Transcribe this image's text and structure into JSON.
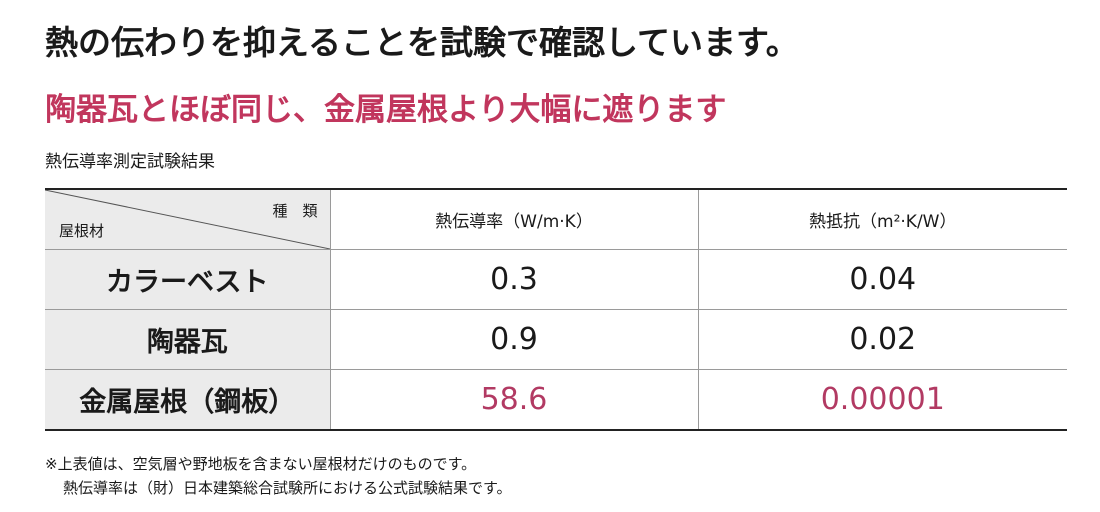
{
  "header": {
    "title": "熱の伝わりを抑えることを試験で確認しています。",
    "subtitle": "陶器瓦とほぼ同じ、金属屋根より大幅に遮ります"
  },
  "caption": "熱伝導率測定試験結果",
  "table": {
    "corner": {
      "top": "種　類",
      "bottom": "屋根材"
    },
    "columns": [
      "熱伝導率（W/m·K）",
      "熱抵抗（m²·K/W）"
    ],
    "rows": [
      [
        "カラーベスト",
        "0.3",
        "0.04"
      ],
      [
        "陶器瓦",
        "0.9",
        "0.02"
      ],
      [
        "金属屋根（鋼板）",
        "58.6",
        "0.00001"
      ]
    ]
  },
  "notes": [
    "※上表値は、空気層や野地板を含まない屋根材だけのものです。",
    "熱伝導率は（財）日本建築総合試験所における公式試験結果です。"
  ]
}
